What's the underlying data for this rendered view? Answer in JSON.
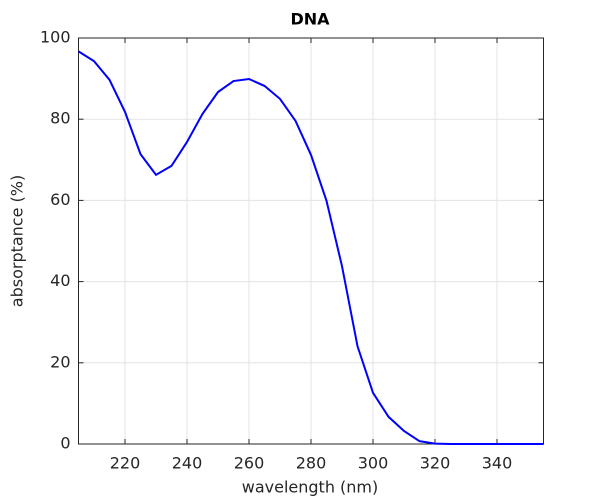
{
  "chart_data": {
    "type": "line",
    "title": "DNA",
    "x_label": "wavelength (nm)",
    "y_label": "absorptance (%)",
    "x": [
      205,
      210,
      215,
      220,
      225,
      230,
      235,
      240,
      245,
      250,
      255,
      260,
      265,
      270,
      275,
      280,
      285,
      290,
      295,
      300,
      305,
      310,
      315,
      320,
      325,
      330,
      335,
      340,
      345,
      350,
      355
    ],
    "series": [
      {
        "name": "DNA",
        "color": "#0000ff",
        "values": [
          96.7,
          94.3,
          89.7,
          81.8,
          71.4,
          66.3,
          68.5,
          74.4,
          81.3,
          86.7,
          89.4,
          89.9,
          88.2,
          85.0,
          79.6,
          71.2,
          59.9,
          43.8,
          24.1,
          12.6,
          6.7,
          3.2,
          0.7,
          0.1,
          0,
          0,
          0,
          0,
          0,
          0,
          0
        ]
      }
    ],
    "xlim": [
      205,
      355
    ],
    "xticks": [
      220,
      240,
      260,
      280,
      300,
      320,
      340
    ],
    "ylim": [
      0,
      100
    ],
    "yticks": [
      0,
      20,
      40,
      60,
      80,
      100
    ],
    "grid": true
  }
}
